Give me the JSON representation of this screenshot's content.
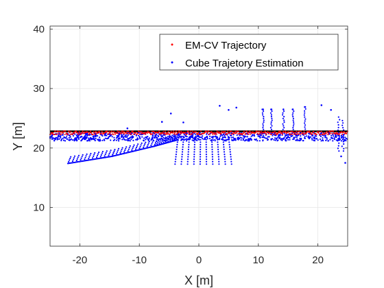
{
  "chart_data": {
    "type": "scatter",
    "xlabel": "X [m]",
    "ylabel": "Y [m]",
    "xlim": [
      -25,
      25
    ],
    "ylim": [
      3.5,
      40.5
    ],
    "xticks": [
      -20,
      -10,
      0,
      10,
      20
    ],
    "yticks": [
      10,
      20,
      30,
      40
    ],
    "xtick_labels": [
      "-20",
      "-10",
      "0",
      "10",
      "20"
    ],
    "ytick_labels": [
      "10",
      "20",
      "30",
      "40"
    ],
    "grid": true,
    "legend_position": "top-right",
    "reference_line": {
      "y": 22.8,
      "color": "#000000"
    },
    "series": [
      {
        "name": "EM-CV Trajectory",
        "color": "#ff0000",
        "x_range": [
          -25,
          25
        ],
        "y_center": 22.55,
        "y_spread": 0.3
      },
      {
        "name": "Cube Trajetory Estimation",
        "color": "#0000ff",
        "main_band": {
          "x_range": [
            -25,
            25
          ],
          "y_range": [
            21.2,
            22.6
          ]
        },
        "lower_trails": [
          {
            "x": [
              -22,
              -14.6
            ],
            "y": [
              17.4,
              18.6
            ]
          },
          {
            "x": [
              -14.6,
              -7.5
            ],
            "y": [
              18.6,
              20.3
            ]
          },
          {
            "x": [
              -7.5,
              -3.5
            ],
            "y": [
              20.3,
              21.4
            ]
          }
        ],
        "fan": {
          "x_top": [
            -3.5,
            5
          ],
          "y_top": 21.8,
          "x_bottom": [
            -4,
            5.5
          ],
          "y_bottom": 17.3
        },
        "scatter_points": [
          {
            "x": 5,
            "y": 26.4
          },
          {
            "x": 3.5,
            "y": 27.1
          },
          {
            "x": 6.3,
            "y": 26.8
          },
          {
            "x": 10.8,
            "y": 26.5
          },
          {
            "x": 12.2,
            "y": 26.5
          },
          {
            "x": 14.2,
            "y": 26.5
          },
          {
            "x": 15.8,
            "y": 26.5
          },
          {
            "x": 17.8,
            "y": 26.9
          },
          {
            "x": 20.6,
            "y": 27.2
          },
          {
            "x": 22.2,
            "y": 26.4
          },
          {
            "x": -4.7,
            "y": 25.8
          },
          {
            "x": -2.6,
            "y": 24.3
          },
          {
            "x": -6.2,
            "y": 24.4
          },
          {
            "x": 23.9,
            "y": 18.6
          },
          {
            "x": 24.6,
            "y": 17.5
          },
          {
            "x": -12,
            "y": 23.3
          }
        ],
        "right_columns": [
          {
            "x": 10.8,
            "y_range": [
              22.5,
              26.5
            ]
          },
          {
            "x": 12.2,
            "y_range": [
              22.5,
              26.5
            ]
          },
          {
            "x": 14.2,
            "y_range": [
              22.5,
              26.5
            ]
          },
          {
            "x": 15.8,
            "y_range": [
              22.5,
              26.5
            ]
          },
          {
            "x": 17.8,
            "y_range": [
              22.5,
              26.9
            ]
          },
          {
            "x": 23.5,
            "y_range": [
              19.5,
              25.2
            ]
          },
          {
            "x": 24.2,
            "y_range": [
              19.5,
              24.6
            ]
          }
        ]
      }
    ]
  }
}
